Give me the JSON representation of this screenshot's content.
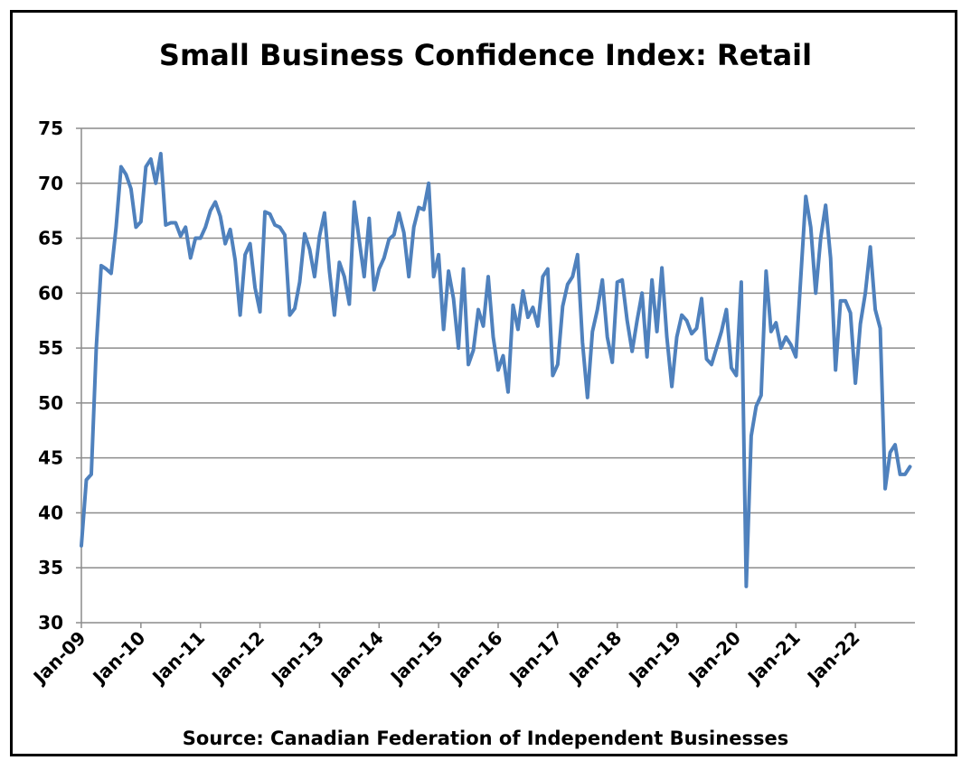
{
  "chart_data": {
    "type": "line",
    "title": "Small Business Confidence Index: Retail",
    "source": "Source: Canadian Federation of Independent Businesses",
    "xlabel": "",
    "ylabel": "",
    "ylim": [
      30,
      75
    ],
    "yticks": [
      30,
      35,
      40,
      45,
      50,
      55,
      60,
      65,
      70,
      75
    ],
    "x_start": "2009-01",
    "xticks": [
      "Jan-09",
      "Jan-10",
      "Jan-11",
      "Jan-12",
      "Jan-13",
      "Jan-14",
      "Jan-15",
      "Jan-16",
      "Jan-17",
      "Jan-18",
      "Jan-19",
      "Jan-20",
      "Jan-21",
      "Jan-22"
    ],
    "grid": "horizontal",
    "line_color": "#4f81bd",
    "series": [
      {
        "values": [
          37.0,
          43.0,
          43.5,
          55.0,
          62.5,
          62.2,
          61.8,
          66.0,
          71.5,
          70.8,
          69.5,
          66.0,
          66.5,
          71.5,
          72.2,
          70.0,
          72.7,
          66.2,
          66.4,
          66.4,
          65.2,
          66.0,
          63.2,
          65.0,
          65.0,
          66.0,
          67.5,
          68.3,
          67.0,
          64.5,
          65.8,
          63.0,
          58.0,
          63.5,
          64.5,
          60.5,
          58.3,
          67.4,
          67.2,
          66.2,
          66.0,
          65.3,
          58.0,
          58.6,
          61.0,
          65.4,
          64.0,
          61.5,
          65.2,
          67.3,
          62.0,
          58.0,
          62.8,
          61.5,
          59.0,
          68.3,
          64.8,
          61.5,
          66.8,
          60.3,
          62.2,
          63.2,
          64.9,
          65.3,
          67.3,
          65.5,
          61.5,
          66.0,
          67.8,
          67.6,
          70.0,
          61.5,
          63.5,
          56.7,
          62.0,
          59.5,
          55.0,
          62.2,
          53.5,
          54.8,
          58.5,
          57.0,
          61.5,
          56.0,
          53.0,
          54.3,
          51.0,
          58.9,
          56.7,
          60.2,
          57.8,
          58.7,
          57.0,
          61.5,
          62.2,
          52.5,
          53.5,
          58.8,
          60.8,
          61.5,
          63.5,
          55.5,
          50.5,
          56.5,
          58.5,
          61.2,
          56.0,
          53.7,
          61.0,
          61.2,
          57.5,
          54.7,
          57.5,
          60.0,
          54.2,
          61.2,
          56.5,
          62.3,
          56.0,
          51.5,
          56.0,
          58.0,
          57.5,
          56.3,
          56.8,
          59.5,
          54.0,
          53.5,
          55.0,
          56.5,
          58.5,
          53.2,
          52.5,
          61.0,
          33.3,
          47.0,
          49.7,
          50.7,
          62.0,
          56.5,
          57.3,
          55.0,
          56.0,
          55.3,
          54.2,
          61.5,
          68.8,
          66.0,
          60.0,
          65.0,
          68.0,
          63.2,
          53.0,
          59.3,
          59.3,
          58.2,
          51.8,
          57.2,
          60.0,
          64.2,
          58.5,
          56.8,
          42.2,
          45.5,
          46.2,
          43.5,
          43.5,
          44.2
        ]
      }
    ]
  }
}
